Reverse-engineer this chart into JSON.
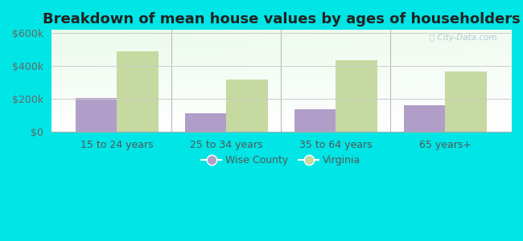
{
  "title": "Breakdown of mean house values by ages of householders",
  "categories": [
    "15 to 24 years",
    "25 to 34 years",
    "35 to 64 years",
    "65 years+"
  ],
  "wise_county": [
    205000,
    115000,
    140000,
    160000
  ],
  "virginia": [
    490000,
    320000,
    435000,
    370000
  ],
  "wise_county_color": "#b09ec9",
  "virginia_color": "#c5d9a0",
  "ylim": [
    0,
    620000
  ],
  "yticks": [
    0,
    200000,
    400000,
    600000
  ],
  "ytick_labels": [
    "$0",
    "$200k",
    "$400k",
    "$600k"
  ],
  "bar_width": 0.38,
  "title_fontsize": 13,
  "tick_fontsize": 9,
  "legend_labels": [
    "Wise County",
    "Virginia"
  ],
  "watermark": "ⓘ City-Data.com",
  "figure_bg": "#00e5e5"
}
